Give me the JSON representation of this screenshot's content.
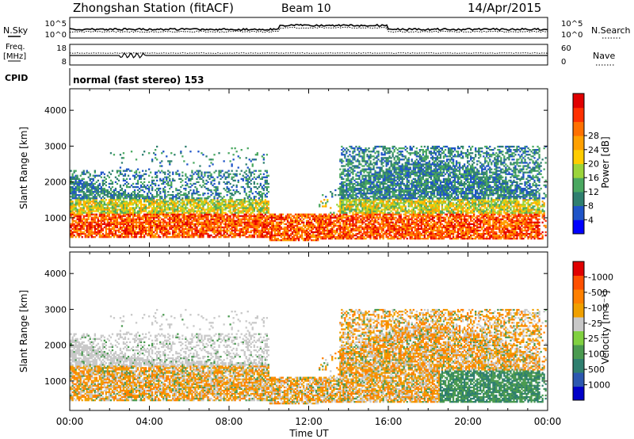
{
  "header": {
    "station": "Zhongshan Station (fitACF)",
    "beam": "Beam 10",
    "date": "14/Apr/2015"
  },
  "top_panels": {
    "nsky_label": "N.Sky",
    "nsky_ticks": [
      "10^5",
      "10^0"
    ],
    "nsearch_label": "N.Search",
    "nsearch_ticks": [
      "10^5",
      "10^0"
    ],
    "freq_label": [
      "Freq.",
      "[MHz]"
    ],
    "freq_ticks": [
      "18",
      "8"
    ],
    "nave_label": "Nave",
    "nave_ticks": [
      "60",
      "0"
    ],
    "cpid_label": "CPID",
    "cpid_value": "normal (fast stereo) 153"
  },
  "chart_data": [
    {
      "type": "heatmap",
      "name": "power",
      "ylabel": "Slant Range [km]",
      "yticks": [
        1000,
        2000,
        3000,
        4000
      ],
      "ylim": [
        180,
        4600
      ],
      "xlim": [
        0,
        24
      ],
      "colorbar": {
        "label": "Power [dB]",
        "ticks": [
          "4",
          "8",
          "12",
          "16",
          "20",
          "24",
          "28"
        ],
        "colors": [
          "#0000ff",
          "#1f54c8",
          "#2f7f6f",
          "#4aa860",
          "#9bd43a",
          "#ffcc00",
          "#ffa000",
          "#ff7000",
          "#ff3000",
          "#e00000"
        ]
      }
    },
    {
      "type": "heatmap",
      "name": "velocity",
      "ylabel": "Slant Range [km]",
      "yticks": [
        1000,
        2000,
        3000,
        4000
      ],
      "ylim": [
        180,
        4600
      ],
      "xlim": [
        0,
        24
      ],
      "xticks": [
        "00:00",
        "04:00",
        "08:00",
        "12:00",
        "16:00",
        "20:00",
        "00:00"
      ],
      "xlabel": "Time UT",
      "colorbar": {
        "label": "Velocity [m s⁻¹]",
        "ticks": [
          "1000",
          "500",
          "100",
          "25",
          "-25",
          "-100",
          "-500",
          "-1000"
        ],
        "colors": [
          "#0000c8",
          "#2c58b0",
          "#2f7f6f",
          "#4a9a50",
          "#80d040",
          "#c8c8c8",
          "#f0a000",
          "#ff8000",
          "#ff5000",
          "#e00000"
        ]
      }
    }
  ]
}
